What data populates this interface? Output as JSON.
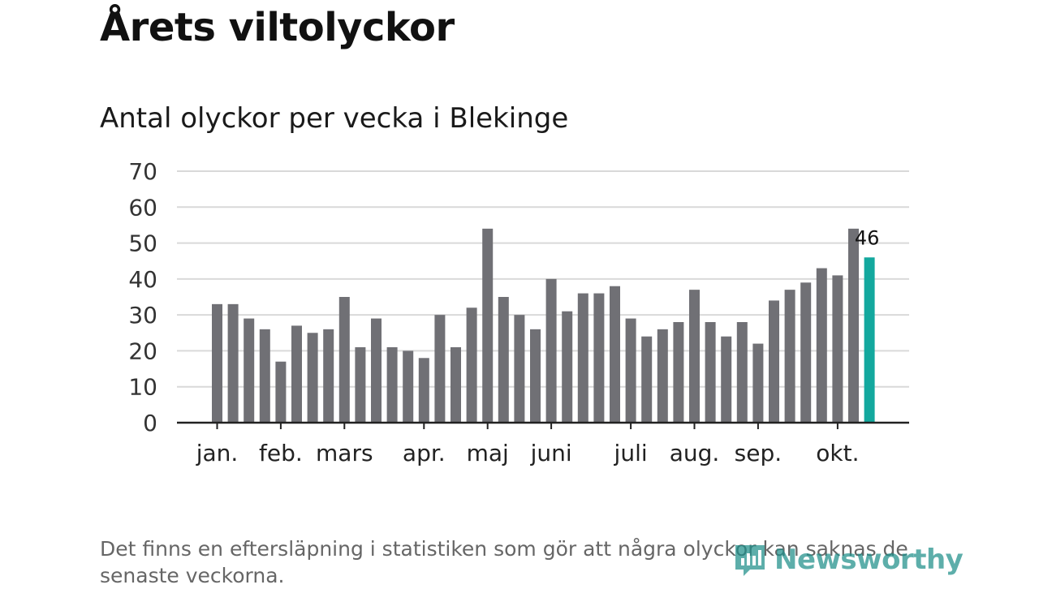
{
  "title": "Årets viltolyckor",
  "subtitle": "Antal olyckor per vecka i Blekinge",
  "footnote": "Det finns en eftersläpning i statistiken som gör att några olyckor kan saknas de senaste veckorna.",
  "brand": {
    "name": "Newsworthy",
    "color": "#1f8f8a"
  },
  "chart_data": {
    "type": "bar",
    "title": "Antal olyckor per vecka i Blekinge",
    "ylim": [
      0,
      70
    ],
    "yticks": [
      0,
      10,
      20,
      30,
      40,
      50,
      60,
      70
    ],
    "grid": true,
    "x_month_labels": [
      {
        "label": "jan.",
        "week_index": 0
      },
      {
        "label": "feb.",
        "week_index": 4
      },
      {
        "label": "mars",
        "week_index": 8
      },
      {
        "label": "apr.",
        "week_index": 13
      },
      {
        "label": "maj",
        "week_index": 17
      },
      {
        "label": "juni",
        "week_index": 21
      },
      {
        "label": "juli",
        "week_index": 26
      },
      {
        "label": "aug.",
        "week_index": 30
      },
      {
        "label": "sep.",
        "week_index": 34
      },
      {
        "label": "okt.",
        "week_index": 39
      }
    ],
    "series": [
      {
        "values": [
          33,
          33,
          29,
          26,
          17,
          27,
          25,
          26,
          35,
          21,
          29,
          21,
          20,
          18,
          30,
          21,
          32,
          54,
          35,
          30,
          26,
          40,
          31,
          36,
          36,
          38,
          29,
          24,
          26,
          28,
          37,
          28,
          24,
          28,
          22,
          34,
          37,
          39,
          43,
          41,
          54,
          46
        ],
        "color": "#707075"
      }
    ],
    "highlight": {
      "week_index": 41,
      "value": 46,
      "label": "46",
      "color": "#13a89e"
    }
  }
}
